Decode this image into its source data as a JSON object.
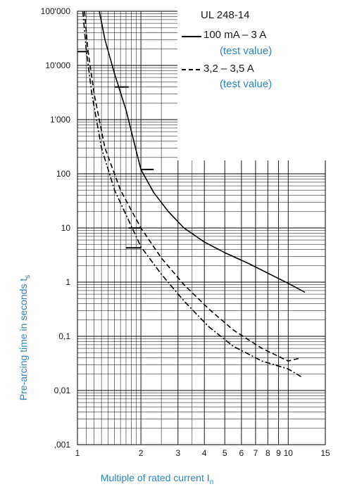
{
  "chart_data": {
    "type": "line",
    "x_scale": "log",
    "y_scale": "log",
    "xlim": [
      1,
      15
    ],
    "ylim": [
      0.001,
      100000
    ],
    "grid": true,
    "xlabel": "Multiple of rated current I",
    "xlabel_sub": "n",
    "ylabel": "Pre-arcing time in seconds t",
    "ylabel_sub": "s",
    "x_tick_labels": [
      {
        "value": 1,
        "label": "1"
      },
      {
        "value": 2,
        "label": "2"
      },
      {
        "value": 3,
        "label": "3"
      },
      {
        "value": 4,
        "label": "4"
      },
      {
        "value": 5,
        "label": "5"
      },
      {
        "value": 6,
        "label": "6"
      },
      {
        "value": 7,
        "label": "7"
      },
      {
        "value": 8,
        "label": "8"
      },
      {
        "value": 9,
        "label": "9"
      },
      {
        "value": 10,
        "label": "10"
      },
      {
        "value": 15,
        "label": "15"
      }
    ],
    "y_tick_labels": [
      {
        "value": 100000,
        "label": "100'000"
      },
      {
        "value": 10000,
        "label": "10'000"
      },
      {
        "value": 1000,
        "label": "1'000"
      },
      {
        "value": 100,
        "label": "100"
      },
      {
        "value": 10,
        "label": "10"
      },
      {
        "value": 1,
        "label": "1"
      },
      {
        "value": 0.1,
        "label": "0,1"
      },
      {
        "value": 0.01,
        "label": "0,01"
      },
      {
        "value": 0.001,
        "label": ",001"
      }
    ],
    "legend": {
      "placement": "top-right",
      "title": "UL 248-14",
      "entries": [
        {
          "label": "100 mA  – 3 A",
          "note": "(test value)",
          "style": "solid"
        },
        {
          "label": "3,2 – 3,5 A",
          "note": "(test value)",
          "style": "dashed"
        }
      ]
    },
    "series": [
      {
        "style": "solid",
        "x": [
          1.27,
          1.35,
          1.5,
          1.7,
          2.0,
          2.3,
          2.7,
          3.2,
          4.0,
          5.0,
          6.5,
          8.5,
          10.0,
          12.0
        ],
        "y": [
          100000,
          30000,
          7000,
          1500,
          120,
          45,
          20,
          10,
          5.5,
          3.5,
          2.2,
          1.3,
          0.95,
          0.65
        ]
      },
      {
        "style": "dashed",
        "x": [
          1.08,
          1.12,
          1.2,
          1.35,
          1.6,
          2.0,
          2.5,
          3.2,
          4.2,
          5.5,
          7.5,
          10.0,
          11.5
        ],
        "y": [
          100000,
          20000,
          3000,
          300,
          50,
          10,
          2.8,
          0.9,
          0.32,
          0.13,
          0.06,
          0.035,
          0.04
        ]
      },
      {
        "style": "dashdot",
        "x": [
          1.06,
          1.1,
          1.17,
          1.3,
          1.5,
          2.0,
          2.5,
          3.2,
          4.2,
          5.5,
          7.5,
          10.0,
          11.5
        ],
        "y": [
          100000,
          20000,
          3000,
          300,
          50,
          4.5,
          1.4,
          0.45,
          0.15,
          0.065,
          0.035,
          0.025,
          0.018
        ]
      }
    ],
    "test_value_markers": [
      {
        "group": "100 mA – 3 A",
        "x": [
          1.0,
          1.12
        ],
        "y": 18000
      },
      {
        "group": "100 mA – 3 A",
        "x": [
          1.5,
          1.75
        ],
        "y": 4000
      },
      {
        "group": "100 mA – 3 A",
        "x": [
          2.0,
          2.3
        ],
        "y": 120
      },
      {
        "group": "3,2 – 3,5 A",
        "x": [
          1.75,
          2.0
        ],
        "y": 10
      },
      {
        "group": "3,2 – 3,5 A",
        "x": [
          1.7,
          2.0
        ],
        "y": 4.3
      }
    ]
  }
}
